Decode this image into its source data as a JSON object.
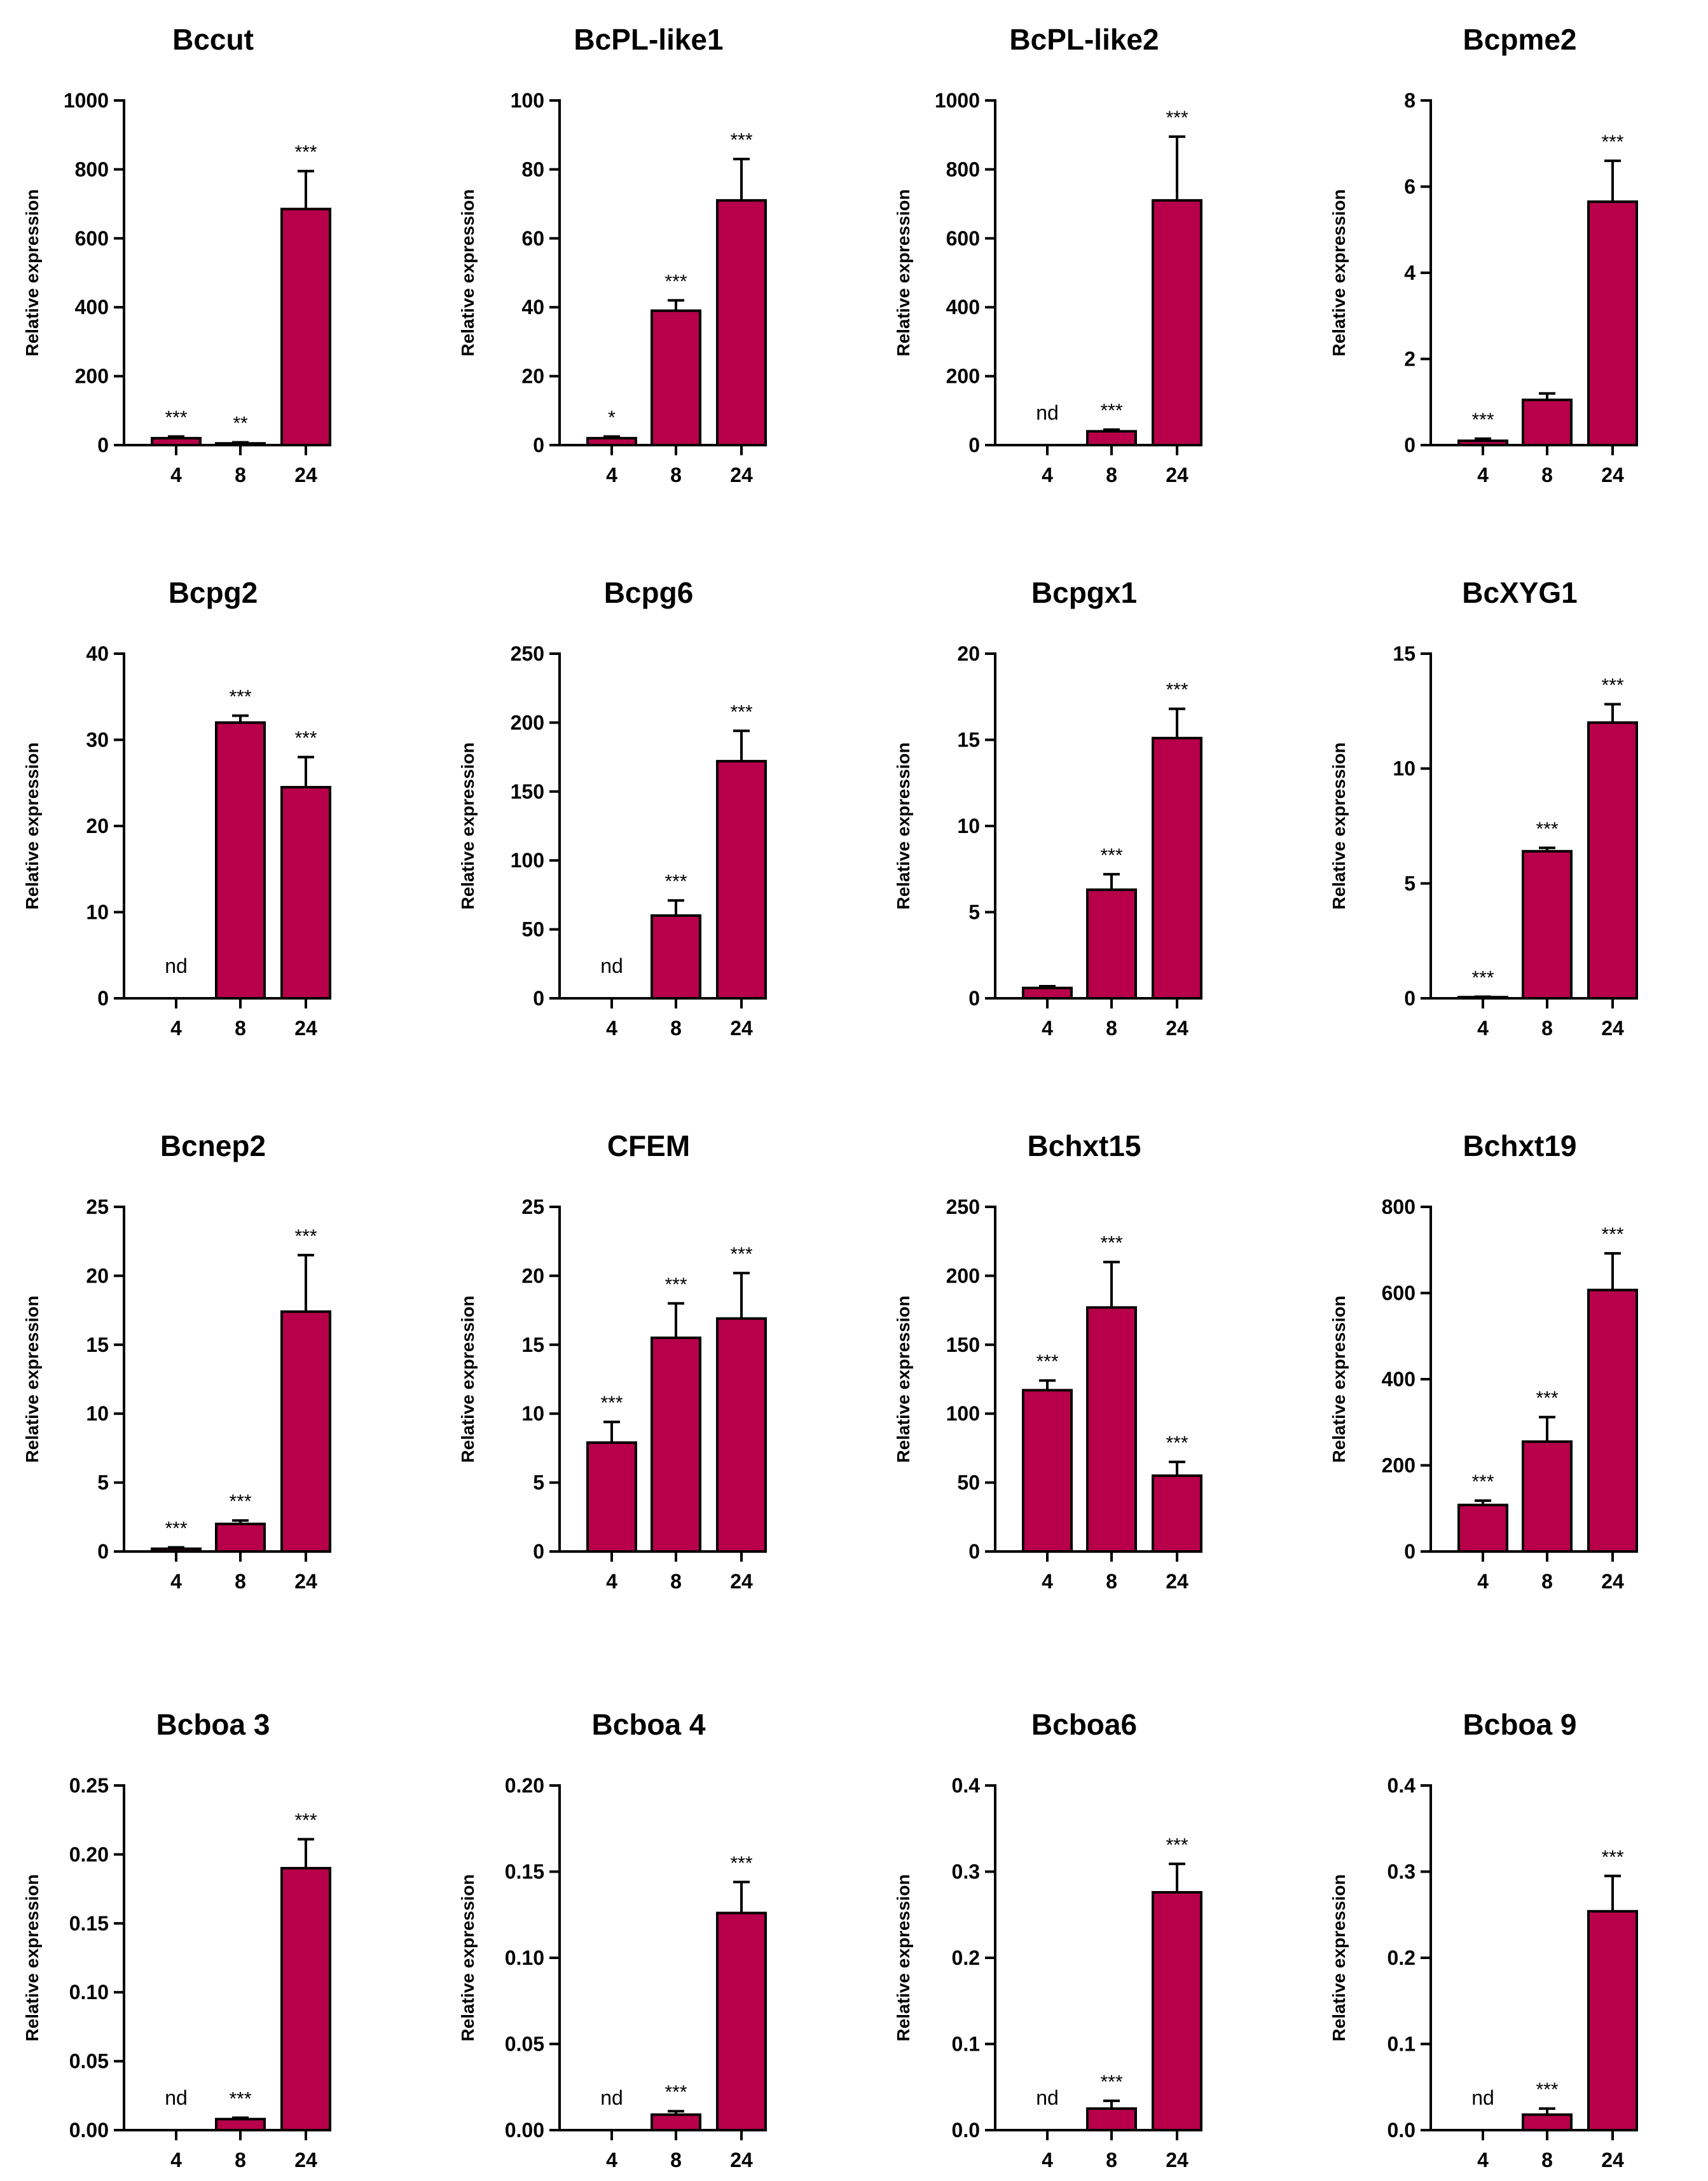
{
  "figure": {
    "bar_color": "#b8004a",
    "edge_color": "#000000"
  },
  "chart_data": [
    {
      "type": "bar",
      "title": "Bccut",
      "ylabel": "Relative expression",
      "xlabel": "",
      "categories": [
        "4",
        "8",
        "24"
      ],
      "values": [
        20,
        5,
        685
      ],
      "errors": [
        5,
        3,
        110
      ],
      "annotations": [
        "***",
        "**",
        "***"
      ],
      "ylim": [
        0,
        1000
      ],
      "yticks": [
        "0",
        "200",
        "400",
        "600",
        "800",
        "1000"
      ]
    },
    {
      "type": "bar",
      "title": "BcPL-like1",
      "ylabel": "Relative expression",
      "xlabel": "",
      "categories": [
        "4",
        "8",
        "24"
      ],
      "values": [
        2,
        39,
        71
      ],
      "errors": [
        0.5,
        3,
        12
      ],
      "annotations": [
        "*",
        "***",
        "***"
      ],
      "ylim": [
        0,
        100
      ],
      "yticks": [
        "0",
        "20",
        "40",
        "60",
        "80",
        "100"
      ]
    },
    {
      "type": "bar",
      "title": "BcPL-like2",
      "ylabel": "Relative expression",
      "xlabel": "",
      "categories": [
        "4",
        "8",
        "24"
      ],
      "values": [
        0,
        40,
        710
      ],
      "errors": [
        0,
        5,
        185
      ],
      "annotations": [
        "nd",
        "***",
        "***"
      ],
      "ylim": [
        0,
        1000
      ],
      "yticks": [
        "0",
        "200",
        "400",
        "600",
        "800",
        "1000"
      ]
    },
    {
      "type": "bar",
      "title": "Bcpme2",
      "ylabel": "Relative expression",
      "xlabel": "",
      "categories": [
        "4",
        "8",
        "24"
      ],
      "values": [
        0.1,
        1.05,
        5.65
      ],
      "errors": [
        0.05,
        0.15,
        0.95
      ],
      "annotations": [
        "***",
        "",
        "***"
      ],
      "ylim": [
        0,
        8
      ],
      "yticks": [
        "0",
        "2",
        "4",
        "6",
        "8"
      ]
    },
    {
      "type": "bar",
      "title": "Bcpg2",
      "ylabel": "Relative expression",
      "xlabel": "",
      "categories": [
        "4",
        "8",
        "24"
      ],
      "values": [
        0,
        32,
        24.5
      ],
      "errors": [
        0,
        0.8,
        3.5
      ],
      "annotations": [
        "nd",
        "***",
        "***"
      ],
      "ylim": [
        0,
        40
      ],
      "yticks": [
        "0",
        "10",
        "20",
        "30",
        "40"
      ]
    },
    {
      "type": "bar",
      "title": "Bcpg6",
      "ylabel": "Relative expression",
      "xlabel": "",
      "categories": [
        "4",
        "8",
        "24"
      ],
      "values": [
        0,
        60,
        172
      ],
      "errors": [
        0,
        11,
        22
      ],
      "annotations": [
        "nd",
        "***",
        "***"
      ],
      "ylim": [
        0,
        250
      ],
      "yticks": [
        "0",
        "50",
        "100",
        "150",
        "200",
        "250"
      ]
    },
    {
      "type": "bar",
      "title": "Bcpgx1",
      "ylabel": "Relative expression",
      "xlabel": "",
      "categories": [
        "4",
        "8",
        "24"
      ],
      "values": [
        0.6,
        6.3,
        15.1
      ],
      "errors": [
        0.1,
        0.9,
        1.7
      ],
      "annotations": [
        "",
        "***",
        "***"
      ],
      "ylim": [
        0,
        20
      ],
      "yticks": [
        "0",
        "5",
        "10",
        "15",
        "20"
      ]
    },
    {
      "type": "bar",
      "title": "BcXYG1",
      "ylabel": "Relative expression",
      "xlabel": "",
      "categories": [
        "4",
        "8",
        "24"
      ],
      "values": [
        0.05,
        6.4,
        12
      ],
      "errors": [
        0.02,
        0.15,
        0.8
      ],
      "annotations": [
        "***",
        "***",
        "***"
      ],
      "ylim": [
        0,
        15
      ],
      "yticks": [
        "0",
        "5",
        "10",
        "15"
      ]
    },
    {
      "type": "bar",
      "title": "Bcnep2",
      "ylabel": "Relative expression",
      "xlabel": "",
      "categories": [
        "4",
        "8",
        "24"
      ],
      "values": [
        0.2,
        2,
        17.4
      ],
      "errors": [
        0.1,
        0.25,
        4.1
      ],
      "annotations": [
        "***",
        "***",
        "***"
      ],
      "ylim": [
        0,
        25
      ],
      "yticks": [
        "0",
        "5",
        "10",
        "15",
        "20",
        "25"
      ]
    },
    {
      "type": "bar",
      "title": "CFEM",
      "ylabel": "Relative expression",
      "xlabel": "",
      "categories": [
        "4",
        "8",
        "24"
      ],
      "values": [
        7.9,
        15.5,
        16.9
      ],
      "errors": [
        1.5,
        2.5,
        3.3
      ],
      "annotations": [
        "***",
        "***",
        "***"
      ],
      "ylim": [
        0,
        25
      ],
      "yticks": [
        "0",
        "5",
        "10",
        "15",
        "20",
        "25"
      ]
    },
    {
      "type": "bar",
      "title": "Bchxt15",
      "ylabel": "Relative expression",
      "xlabel": "",
      "categories": [
        "4",
        "8",
        "24"
      ],
      "values": [
        117,
        177,
        55
      ],
      "errors": [
        7,
        33,
        10
      ],
      "annotations": [
        "***",
        "***",
        "***"
      ],
      "ylim": [
        0,
        250
      ],
      "yticks": [
        "0",
        "50",
        "100",
        "150",
        "200",
        "250"
      ]
    },
    {
      "type": "bar",
      "title": "Bchxt19",
      "ylabel": "Relative expression",
      "xlabel": "",
      "categories": [
        "4",
        "8",
        "24"
      ],
      "values": [
        108,
        255,
        607
      ],
      "errors": [
        10,
        57,
        85
      ],
      "annotations": [
        "***",
        "***",
        "***"
      ],
      "ylim": [
        0,
        800
      ],
      "yticks": [
        "0",
        "200",
        "400",
        "600",
        "800"
      ]
    },
    {
      "type": "bar",
      "title": "Bcboa 3",
      "ylabel": "Relative expression",
      "xlabel": "",
      "categories": [
        "4",
        "8",
        "24"
      ],
      "values": [
        0,
        0.008,
        0.19
      ],
      "errors": [
        0,
        0.001,
        0.021
      ],
      "annotations": [
        "nd",
        "***",
        "***"
      ],
      "ylim": [
        0,
        0.25
      ],
      "yticks": [
        "0.00",
        "0.05",
        "0.10",
        "0.15",
        "0.20",
        "0.25"
      ]
    },
    {
      "type": "bar",
      "title": "Bcboa 4",
      "ylabel": "Relative expression",
      "xlabel": "",
      "categories": [
        "4",
        "8",
        "24"
      ],
      "values": [
        0,
        0.009,
        0.126
      ],
      "errors": [
        0,
        0.002,
        0.018
      ],
      "annotations": [
        "nd",
        "***",
        "***"
      ],
      "ylim": [
        0,
        0.2
      ],
      "yticks": [
        "0.00",
        "0.05",
        "0.10",
        "0.15",
        "0.20"
      ]
    },
    {
      "type": "bar",
      "title": "Bcboa6",
      "ylabel": "Relative expression",
      "xlabel": "",
      "categories": [
        "4",
        "8",
        "24"
      ],
      "values": [
        0,
        0.025,
        0.276
      ],
      "errors": [
        0,
        0.009,
        0.033
      ],
      "annotations": [
        "nd",
        "***",
        "***"
      ],
      "ylim": [
        0,
        0.4
      ],
      "yticks": [
        "0.0",
        "0.1",
        "0.2",
        "0.3",
        "0.4"
      ]
    },
    {
      "type": "bar",
      "title": "Bcboa 9",
      "ylabel": "Relative expression",
      "xlabel": "",
      "categories": [
        "4",
        "8",
        "24"
      ],
      "values": [
        0,
        0.018,
        0.254
      ],
      "errors": [
        0,
        0.007,
        0.041
      ],
      "annotations": [
        "nd",
        "***",
        "***"
      ],
      "ylim": [
        0,
        0.4
      ],
      "yticks": [
        "0.0",
        "0.1",
        "0.2",
        "0.3",
        "0.4"
      ]
    }
  ]
}
